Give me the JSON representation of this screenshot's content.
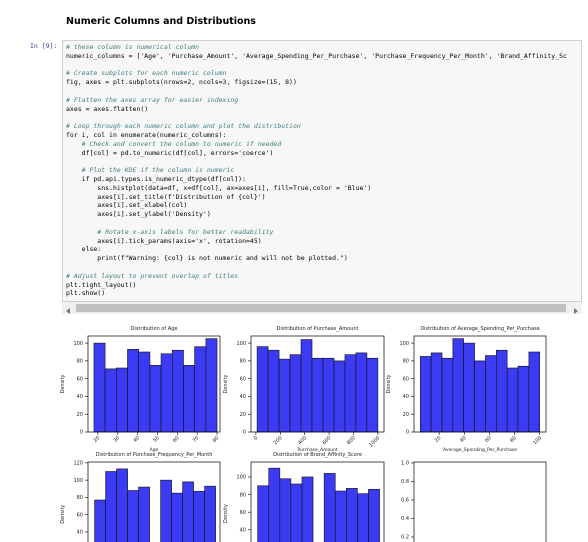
{
  "header": {
    "title": "Numeric Columns and Distributions"
  },
  "cell": {
    "prompt": "In [9]:",
    "code": [
      [
        "# these column is numerical column",
        "numeric_columns = ['Age', 'Purchase_Amount', 'Average_Spending_Per_Purchase', 'Purchase_Frequency_Per_Month', 'Brand_Affinity_Sc"
      ],
      [
        "# Create subplots for each numeric column",
        "fig, axes = plt.subplots(nrows=2, ncols=3, figsize=(15, 8))"
      ],
      [
        "# Flatten the axes array for easier indexing",
        "axes = axes.flatten()"
      ],
      [
        "# Loop through each numeric column and plot the distribution",
        "for i, col in enumerate(numeric_columns):",
        "    # Check and convert the column to numeric if needed",
        "    df[col] = pd.to_numeric(df[col], errors='coerce')"
      ],
      [
        "    # Plot the KDE if the column is numeric",
        "    if pd.api.types.is_numeric_dtype(df[col]):",
        "        sns.histplot(data=df, x=df[col], ax=axes[i], fill=True,color = 'Blue')",
        "        axes[i].set_title(f'Distribution of {col}')",
        "        axes[i].set_xlabel(col)",
        "        axes[i].set_ylabel('Density')"
      ],
      [
        "        # Rotate x-axis labels for better readability",
        "        axes[i].tick_params(axis='x', rotation=45)",
        "    else:",
        "        print(f\"Warning: {col} is not numeric and will not be plotted.\")"
      ],
      [
        "# Adjust layout to prevent overlap of titles",
        "plt.tight_layout()",
        "plt.show()"
      ]
    ]
  },
  "chart_data": [
    {
      "type": "histogram",
      "title": "Distribution of Age",
      "xlabel": "Age",
      "ylabel": "Density",
      "color": "#3b3bf4",
      "bins": [
        18,
        23.6,
        29.3,
        34.9,
        40.5,
        46.2,
        51.8,
        57.5,
        63.1,
        68.7,
        74.4,
        80
      ],
      "values": [
        100,
        71,
        72,
        93,
        90,
        75,
        88,
        92,
        75,
        96,
        105
      ],
      "xlim": [
        15,
        81.5
      ],
      "xticks": [
        20,
        30,
        40,
        50,
        60,
        70,
        80
      ],
      "ylim": [
        0,
        108
      ],
      "yticks": [
        0,
        20,
        40,
        60,
        80,
        100
      ]
    },
    {
      "type": "histogram",
      "title": "Distribution of Purchase_Amount",
      "xlabel": "Purchase_Amount",
      "ylabel": "Density",
      "color": "#3b3bf4",
      "bins": [
        10,
        100,
        190,
        280,
        370,
        460,
        550,
        640,
        730,
        820,
        910,
        1000
      ],
      "values": [
        96,
        92,
        82,
        87,
        104,
        83,
        83,
        80,
        87,
        89,
        83
      ],
      "xlim": [
        -40,
        1050
      ],
      "xticks": [
        0,
        200,
        400,
        600,
        800,
        1000
      ],
      "ylim": [
        0,
        108
      ],
      "yticks": [
        0,
        20,
        40,
        60,
        80,
        100
      ]
    },
    {
      "type": "histogram",
      "title": "Distribution of Average_Spending_Per_Purchase",
      "xlabel": "Average_Spending_Per_Purchase",
      "ylabel": "Density",
      "color": "#3b3bf4",
      "bins": [
        5,
        13.6,
        22.3,
        30.9,
        39.5,
        48.2,
        56.8,
        65.5,
        74.1,
        82.7,
        91.4,
        100
      ],
      "values": [
        85,
        89,
        83,
        105,
        100,
        80,
        86,
        92,
        72,
        74,
        90
      ],
      "xlim": [
        0,
        105
      ],
      "xticks": [
        20,
        40,
        60,
        80,
        100
      ],
      "ylim": [
        0,
        108
      ],
      "yticks": [
        0,
        20,
        40,
        60,
        80,
        100
      ]
    },
    {
      "type": "histogram",
      "title": "Distribution of Purchase_Frequency_Per_Month",
      "ylabel": "Density",
      "color": "#3b3bf4",
      "bins": [
        1,
        2,
        3,
        4,
        5,
        6,
        7,
        8,
        9,
        10,
        11,
        12
      ],
      "values": [
        77,
        110,
        113,
        88,
        92,
        0,
        100,
        85,
        98,
        87,
        93
      ],
      "xlim": [
        0.4,
        12.4
      ],
      "ylim": [
        0,
        121
      ],
      "yticks": [
        40,
        60,
        80,
        100,
        120
      ]
    },
    {
      "type": "histogram",
      "title": "Distribution of Brand_Affinity_Score",
      "ylabel": "Density",
      "color": "#3b3bf4",
      "bins": [
        1,
        2,
        3,
        4,
        5,
        6,
        7,
        8,
        9,
        10,
        11,
        12
      ],
      "values": [
        90,
        110,
        98,
        92,
        100,
        0,
        104,
        84,
        87,
        81,
        86
      ],
      "xlim": [
        0.4,
        12.4
      ],
      "ylim": [
        0,
        117
      ],
      "yticks": [
        40,
        60,
        80,
        100
      ]
    },
    {
      "type": "histogram",
      "ylim": [
        0,
        1.01
      ],
      "yticks": [
        {
          "value": 0.2,
          "label": "0.2"
        },
        {
          "value": 0.4,
          "label": "0.4"
        },
        {
          "value": 0.6,
          "label": "0.6"
        },
        {
          "value": 0.8,
          "label": "0.8"
        },
        {
          "value": 1,
          "label": "1.0"
        }
      ]
    }
  ]
}
